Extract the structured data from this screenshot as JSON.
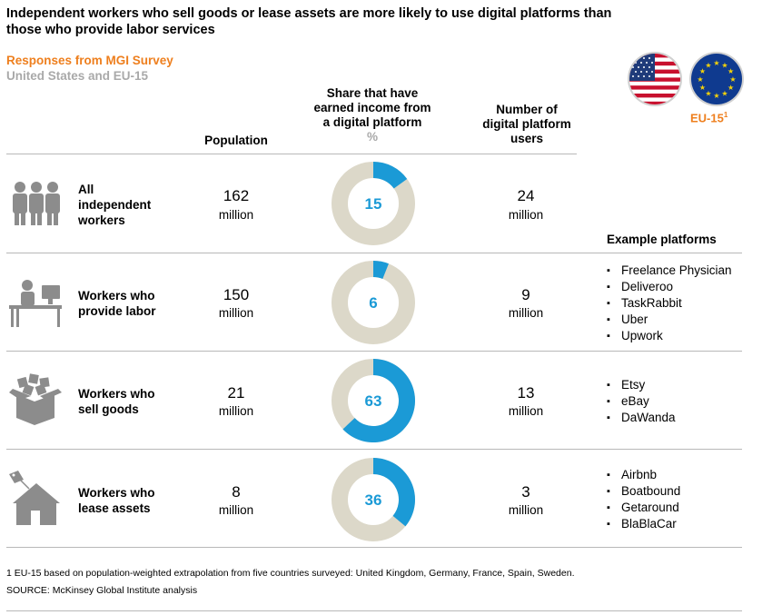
{
  "title": "Independent workers who sell goods or lease assets are more likely to use digital platforms than those who provide labor services",
  "subtitle": "Responses from MGI Survey",
  "region": "United States and EU-15",
  "eu_label": "EU-15",
  "eu_footnote_marker": "1",
  "columns": {
    "population": "Population",
    "share_line1": "Share that have",
    "share_line2": "earned income from",
    "share_line3": "a digital platform",
    "share_unit": "%",
    "users_line1": "Number of",
    "users_line2": "digital platform",
    "users_line3": "users"
  },
  "example_platforms_heading": "Example platforms",
  "rows": [
    {
      "label_lines": [
        "All",
        "independent",
        "workers"
      ],
      "population": "162",
      "population_unit": "million",
      "share": 15,
      "users": "24",
      "users_unit": "million",
      "icon": "people-group-icon",
      "platforms": []
    },
    {
      "label_lines": [
        "Workers who",
        "provide labor"
      ],
      "population": "150",
      "population_unit": "million",
      "share": 6,
      "users": "9",
      "users_unit": "million",
      "icon": "worker-at-desk-icon",
      "platforms": [
        "Freelance Physician",
        "Deliveroo",
        "TaskRabbit",
        "Uber",
        "Upwork"
      ]
    },
    {
      "label_lines": [
        "Workers who",
        "sell goods"
      ],
      "population": "21",
      "population_unit": "million",
      "share": 63,
      "users": "13",
      "users_unit": "million",
      "icon": "box-of-goods-icon",
      "platforms": [
        "Etsy",
        "eBay",
        "DaWanda"
      ]
    },
    {
      "label_lines": [
        "Workers who",
        "lease assets"
      ],
      "population": "8",
      "population_unit": "million",
      "share": 36,
      "users": "3",
      "users_unit": "million",
      "icon": "house-with-tag-icon",
      "platforms": [
        "Airbnb",
        "Boatbound",
        "Getaround",
        "BlaBlaCar"
      ]
    }
  ],
  "footnote": "1 EU-15 based on population-weighted extrapolation from five countries surveyed: United Kingdom, Germany, France, Spain, Sweden.",
  "source": "SOURCE: McKinsey Global Institute analysis",
  "colors": {
    "accent_orange": "#ee7f1e",
    "donut_blue": "#1b9ad6",
    "donut_gray": "#dcd8c9",
    "icon_gray": "#8c8c8c",
    "subtle_gray": "#a9a9a9"
  },
  "chart_data": {
    "type": "table",
    "title": "Independent workers who sell goods or lease assets are more likely to use digital platforms than those who provide labor services",
    "subtitle": "Responses from MGI Survey",
    "categories": [
      "All independent workers",
      "Workers who provide labor",
      "Workers who sell goods",
      "Workers who lease assets"
    ],
    "series": [
      {
        "name": "Population",
        "values": [
          162,
          150,
          21,
          8
        ],
        "unit": "million"
      },
      {
        "name": "Share that have earned income from a digital platform",
        "values": [
          15,
          6,
          63,
          36
        ],
        "unit": "%"
      },
      {
        "name": "Number of digital platform users",
        "values": [
          24,
          9,
          13,
          3
        ],
        "unit": "million"
      }
    ]
  }
}
